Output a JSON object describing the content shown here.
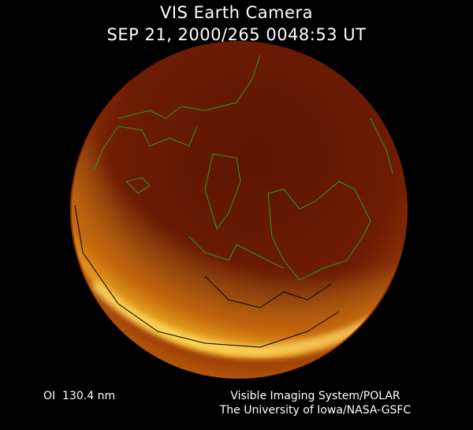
{
  "header": {
    "title": "VIS Earth Camera",
    "timestamp": "SEP 21, 2000/265 0048:53 UT"
  },
  "footer": {
    "band": "OI  130.4 nm",
    "credit_line1": "Visible Imaging System/POLAR",
    "credit_line2": "The University of Iowa/NASA-GSFC"
  },
  "colors": {
    "background": "#000000",
    "disk": "#6a1a04",
    "aurora": "#ffc820",
    "coastline": "#2e9a20"
  }
}
